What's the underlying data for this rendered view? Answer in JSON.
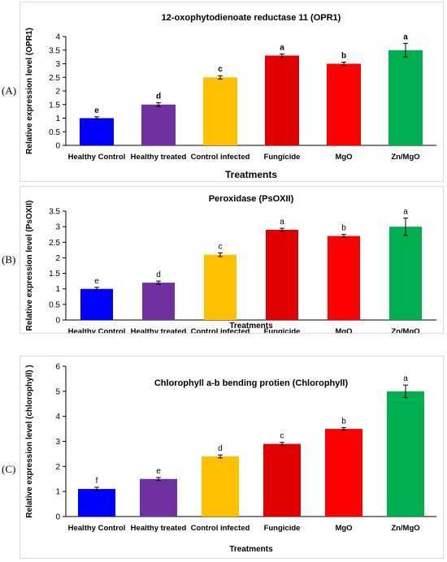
{
  "panels": [
    {
      "label": "(A)"
    },
    {
      "label": "(B)"
    },
    {
      "label": "(C)"
    }
  ],
  "chart_data": [
    {
      "type": "bar",
      "title": "12-oxophytodienoate reductase 11 (OPR1)",
      "xlabel": "Treatments",
      "ylabel": "Relative expression level (OPR1)",
      "categories": [
        "Healthy Control",
        "Healthy treated",
        "Control infected",
        "Fungicide",
        "MgO",
        "Zn/MgO"
      ],
      "values": [
        1.0,
        1.5,
        2.5,
        3.3,
        3.0,
        3.5
      ],
      "errors": [
        0.05,
        0.07,
        0.06,
        0.06,
        0.06,
        0.25
      ],
      "letters": [
        "e",
        "d",
        "c",
        "a",
        "b",
        "a"
      ],
      "colors": [
        "#0000ff",
        "#7030a0",
        "#ffc000",
        "#e00000",
        "#ff0000",
        "#00b050"
      ],
      "ylim": [
        0,
        4
      ],
      "yticks": [
        "0",
        "0.5",
        "1",
        "1.5",
        "2",
        "2.5",
        "3",
        "3.5",
        "4"
      ],
      "grid": false,
      "letters_bold": true
    },
    {
      "type": "bar",
      "title": "Peroxidase (PsOXII)",
      "xlabel": "Treatments",
      "ylabel": "Relative expression level (PsOXII)",
      "categories": [
        "Healthy Control",
        "Healthy treated",
        "Control infected",
        "Fungicide",
        "MgO",
        "Zn/MgO"
      ],
      "values": [
        1.0,
        1.2,
        2.1,
        2.9,
        2.7,
        3.0
      ],
      "errors": [
        0.05,
        0.05,
        0.06,
        0.05,
        0.05,
        0.28
      ],
      "letters": [
        "e",
        "d",
        "c",
        "a",
        "b",
        "a"
      ],
      "colors": [
        "#0000ff",
        "#7030a0",
        "#ffc000",
        "#e00000",
        "#ff0000",
        "#00b050"
      ],
      "ylim": [
        0,
        3.5
      ],
      "yticks": [
        "0",
        "0.5",
        "1",
        "1.5",
        "2",
        "2.5",
        "3",
        "3.5"
      ],
      "grid": false,
      "letters_bold": false
    },
    {
      "type": "bar",
      "title": "Chlorophyll a-b bending protien (Chlorophyll)",
      "xlabel": "Treatments",
      "ylabel": "Relative expression level (chlorophyll) )",
      "categories": [
        "Healthy Control",
        "Healthy treated",
        "Control infected",
        "Fungicide",
        "MgO",
        "Zn/MgO"
      ],
      "values": [
        1.1,
        1.5,
        2.4,
        2.9,
        3.5,
        5.0
      ],
      "errors": [
        0.07,
        0.06,
        0.06,
        0.06,
        0.05,
        0.25
      ],
      "letters": [
        "f",
        "e",
        "d",
        "c",
        "b",
        "a"
      ],
      "colors": [
        "#0000ff",
        "#7030a0",
        "#ffc000",
        "#e00000",
        "#ff0000",
        "#00b050"
      ],
      "ylim": [
        0,
        6
      ],
      "yticks": [
        "0",
        "1",
        "2",
        "3",
        "4",
        "5",
        "6"
      ],
      "grid": false,
      "letters_bold": false
    }
  ]
}
